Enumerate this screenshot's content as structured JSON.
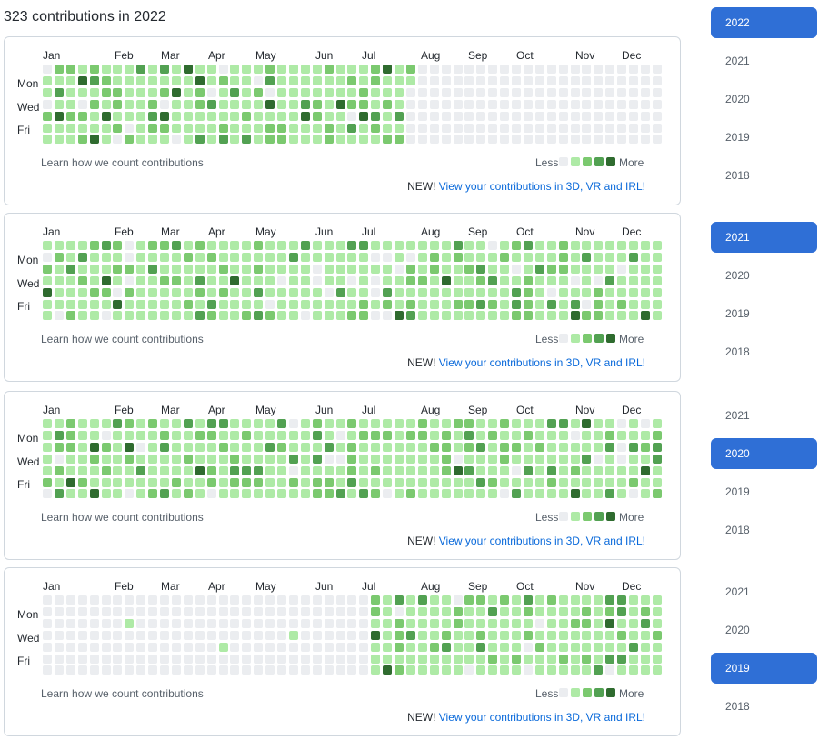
{
  "title": "323 contributions in 2022",
  "colors": {
    "l0": "#ebedf0",
    "l1": "#aeeaa6",
    "l2": "#7bc96f",
    "l3": "#52a152",
    "l4": "#2f6b2f",
    "accent": "#2f6fd6"
  },
  "panels": [
    {
      "months": [
        "Jan",
        "Feb",
        "Mar",
        "Apr",
        "May",
        "Jun",
        "Jul",
        "Aug",
        "Sep",
        "Oct",
        "Nov",
        "Dec"
      ],
      "day_labels": [
        "Mon",
        "Wed",
        "Fri"
      ],
      "learn_text": "Learn how we count contributions",
      "less": "Less",
      "more": "More",
      "new_label": "NEW!",
      "new_link": "View your contributions in 3D, VR and IRL!",
      "years": [
        {
          "label": "2022",
          "selected": true
        },
        {
          "label": "2021",
          "selected": false
        },
        {
          "label": "2020",
          "selected": false
        },
        {
          "label": "2019",
          "selected": false
        },
        {
          "label": "2018",
          "selected": false
        }
      ]
    },
    {
      "months": [
        "Jan",
        "Feb",
        "Mar",
        "Apr",
        "May",
        "Jun",
        "Jul",
        "Aug",
        "Sep",
        "Oct",
        "Nov",
        "Dec"
      ],
      "day_labels": [
        "Mon",
        "Wed",
        "Fri"
      ],
      "learn_text": "Learn how we count contributions",
      "less": "Less",
      "more": "More",
      "new_label": "NEW!",
      "new_link": "View your contributions in 3D, VR and IRL!",
      "years": [
        {
          "label": "2021",
          "selected": true
        },
        {
          "label": "2020",
          "selected": false
        },
        {
          "label": "2019",
          "selected": false
        },
        {
          "label": "2018",
          "selected": false
        }
      ]
    },
    {
      "months": [
        "Jan",
        "Feb",
        "Mar",
        "Apr",
        "May",
        "Jun",
        "Jul",
        "Aug",
        "Sep",
        "Oct",
        "Nov",
        "Dec"
      ],
      "day_labels": [
        "Mon",
        "Wed",
        "Fri"
      ],
      "learn_text": "Learn how we count contributions",
      "less": "Less",
      "more": "More",
      "new_label": "NEW!",
      "new_link": "View your contributions in 3D, VR and IRL!",
      "years": [
        {
          "label": "2021",
          "selected": false
        },
        {
          "label": "2020",
          "selected": true
        },
        {
          "label": "2019",
          "selected": false
        },
        {
          "label": "2018",
          "selected": false
        }
      ]
    },
    {
      "months": [
        "Jan",
        "Feb",
        "Mar",
        "Apr",
        "May",
        "Jun",
        "Jul",
        "Aug",
        "Sep",
        "Oct",
        "Nov",
        "Dec"
      ],
      "day_labels": [
        "Mon",
        "Wed",
        "Fri"
      ],
      "learn_text": "Learn how we count contributions",
      "less": "Less",
      "more": "More",
      "new_label": "NEW!",
      "new_link": "View your contributions in 3D, VR and IRL!",
      "years": [
        {
          "label": "2021",
          "selected": false
        },
        {
          "label": "2020",
          "selected": false
        },
        {
          "label": "2019",
          "selected": true
        },
        {
          "label": "2018",
          "selected": false
        }
      ]
    }
  ]
}
